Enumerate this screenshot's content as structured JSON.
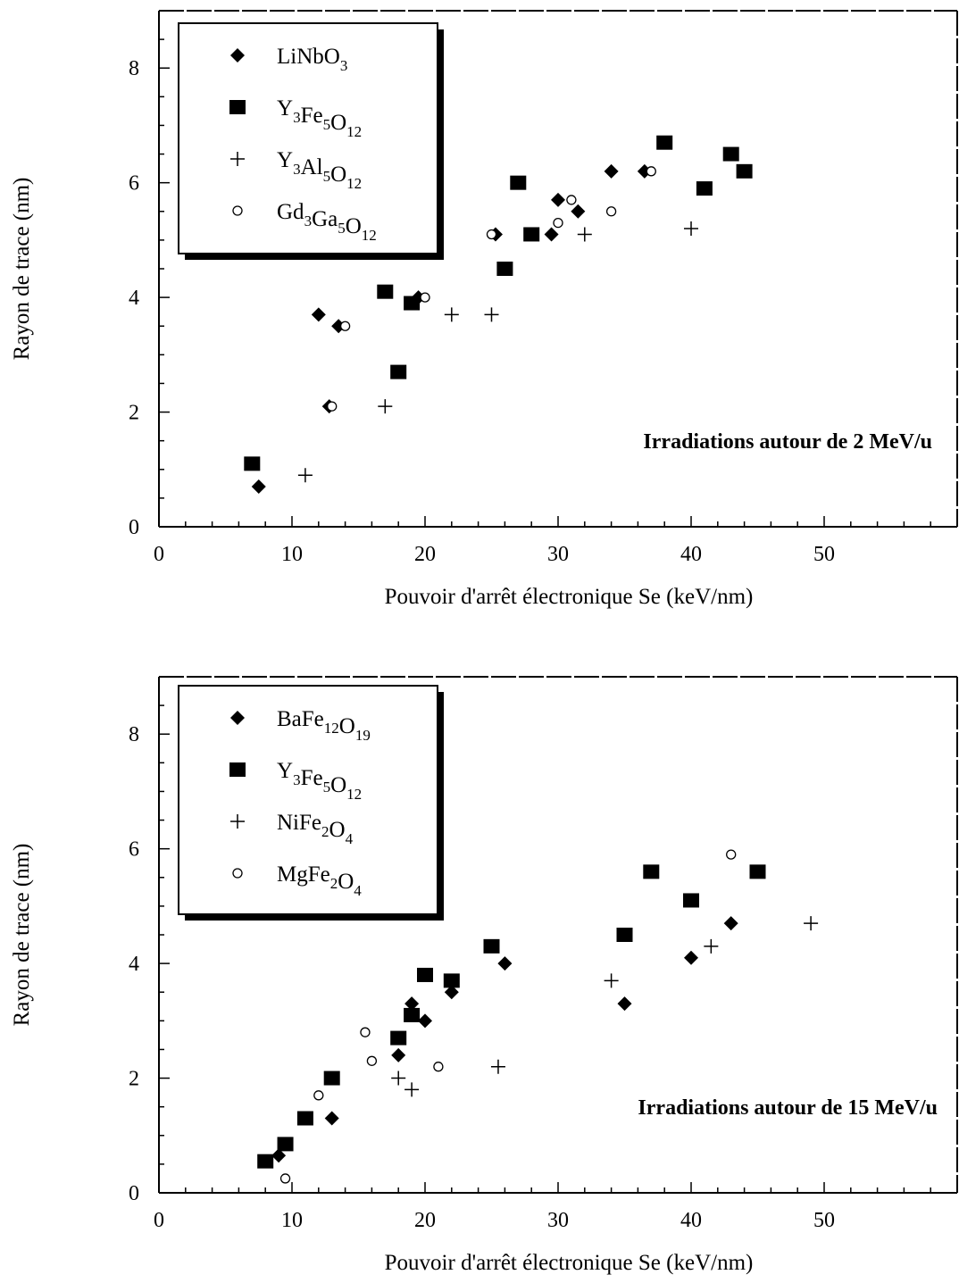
{
  "chart_data": [
    {
      "type": "scatter",
      "title": "",
      "annotation": "Irradiations autour de 2 MeV/u",
      "xlabel": "Pouvoir d'arrêt électronique Se (keV/nm)",
      "ylabel": "Rayon de trace (nm)",
      "xlim": [
        0,
        60
      ],
      "ylim": [
        0,
        9
      ],
      "xticks": [
        "0",
        "10",
        "20",
        "30",
        "40",
        "50"
      ],
      "yticks": [
        "0",
        "2",
        "4",
        "6",
        "8"
      ],
      "grid": false,
      "legend_position": "top-left",
      "series": [
        {
          "name": "LiNbO3",
          "name_parts": [
            [
              "LiNbO",
              ""
            ],
            [
              "3",
              "sub"
            ]
          ],
          "marker": "diamond",
          "points": [
            [
              7.5,
              0.7
            ],
            [
              12,
              3.7
            ],
            [
              12.8,
              2.1
            ],
            [
              13.5,
              3.5
            ],
            [
              19.5,
              4.0
            ],
            [
              25.3,
              5.1
            ],
            [
              29.5,
              5.1
            ],
            [
              30,
              5.7
            ],
            [
              31.5,
              5.5
            ],
            [
              34,
              6.2
            ],
            [
              36.5,
              6.2
            ]
          ]
        },
        {
          "name": "Y3Fe5O12",
          "name_parts": [
            [
              "Y",
              ""
            ],
            [
              "3",
              "sub"
            ],
            [
              "Fe",
              ""
            ],
            [
              "5",
              "sub"
            ],
            [
              "O",
              ""
            ],
            [
              "12",
              "sub"
            ]
          ],
          "marker": "square",
          "points": [
            [
              7,
              1.1
            ],
            [
              17,
              4.1
            ],
            [
              18,
              2.7
            ],
            [
              19,
              3.9
            ],
            [
              26,
              4.5
            ],
            [
              27,
              6.0
            ],
            [
              28,
              5.1
            ],
            [
              38,
              6.7
            ],
            [
              41,
              5.9
            ],
            [
              43,
              6.5
            ],
            [
              44,
              6.2
            ]
          ]
        },
        {
          "name": "Y3Al5O12",
          "name_parts": [
            [
              "Y",
              ""
            ],
            [
              "3",
              "sub"
            ],
            [
              "Al",
              ""
            ],
            [
              "5",
              "sub"
            ],
            [
              "O",
              ""
            ],
            [
              "12",
              "sub"
            ]
          ],
          "marker": "plus",
          "points": [
            [
              11,
              0.9
            ],
            [
              17,
              2.1
            ],
            [
              22,
              3.7
            ],
            [
              25,
              3.7
            ],
            [
              32,
              5.1
            ],
            [
              40,
              5.2
            ]
          ]
        },
        {
          "name": "Gd3Ga5O12",
          "name_parts": [
            [
              "Gd",
              ""
            ],
            [
              "3",
              "sub"
            ],
            [
              "Ga",
              ""
            ],
            [
              "5",
              "sub"
            ],
            [
              "O",
              ""
            ],
            [
              "12",
              "sub"
            ]
          ],
          "marker": "circle",
          "points": [
            [
              13,
              2.1
            ],
            [
              14,
              3.5
            ],
            [
              20,
              4.0
            ],
            [
              25,
              5.1
            ],
            [
              30,
              5.3
            ],
            [
              31,
              5.7
            ],
            [
              34,
              5.5
            ],
            [
              37,
              6.2
            ]
          ]
        }
      ]
    },
    {
      "type": "scatter",
      "title": "",
      "annotation": "Irradiations autour de 15 MeV/u",
      "xlabel": "Pouvoir d'arrêt électronique Se (keV/nm)",
      "ylabel": "Rayon de trace (nm)",
      "xlim": [
        0,
        60
      ],
      "ylim": [
        0,
        9
      ],
      "xticks": [
        "0",
        "10",
        "20",
        "30",
        "40",
        "50"
      ],
      "yticks": [
        "0",
        "2",
        "4",
        "6",
        "8"
      ],
      "grid": false,
      "legend_position": "top-left",
      "series": [
        {
          "name": "BaFe12O19",
          "name_parts": [
            [
              "BaFe",
              ""
            ],
            [
              "12",
              "sub"
            ],
            [
              "O",
              ""
            ],
            [
              "19",
              "sub"
            ]
          ],
          "marker": "diamond",
          "points": [
            [
              9,
              0.65
            ],
            [
              13,
              1.3
            ],
            [
              18,
              2.4
            ],
            [
              19,
              3.3
            ],
            [
              20,
              3.0
            ],
            [
              22,
              3.5
            ],
            [
              26,
              4.0
            ],
            [
              35,
              3.3
            ],
            [
              40,
              4.1
            ],
            [
              43,
              4.7
            ]
          ]
        },
        {
          "name": "Y3Fe5O12",
          "name_parts": [
            [
              "Y",
              ""
            ],
            [
              "3",
              "sub"
            ],
            [
              "Fe",
              ""
            ],
            [
              "5",
              "sub"
            ],
            [
              "O",
              ""
            ],
            [
              "12",
              "sub"
            ]
          ],
          "marker": "square",
          "points": [
            [
              8,
              0.55
            ],
            [
              9.5,
              0.85
            ],
            [
              11,
              1.3
            ],
            [
              13,
              2.0
            ],
            [
              18,
              2.7
            ],
            [
              19,
              3.1
            ],
            [
              20,
              3.8
            ],
            [
              22,
              3.7
            ],
            [
              25,
              4.3
            ],
            [
              35,
              4.5
            ],
            [
              37,
              5.6
            ],
            [
              40,
              5.1
            ],
            [
              45,
              5.6
            ]
          ]
        },
        {
          "name": "NiFe2O4",
          "name_parts": [
            [
              "NiFe",
              ""
            ],
            [
              "2",
              "sub"
            ],
            [
              "O",
              ""
            ],
            [
              "4",
              "sub"
            ]
          ],
          "marker": "plus",
          "points": [
            [
              18,
              2.0
            ],
            [
              19,
              1.8
            ],
            [
              25.5,
              2.2
            ],
            [
              34,
              3.7
            ],
            [
              41.5,
              4.3
            ],
            [
              49,
              4.7
            ]
          ]
        },
        {
          "name": "MgFe2O4",
          "name_parts": [
            [
              "MgFe",
              ""
            ],
            [
              "2",
              "sub"
            ],
            [
              "O",
              ""
            ],
            [
              "4",
              "sub"
            ]
          ],
          "marker": "circle",
          "points": [
            [
              9.5,
              0.25
            ],
            [
              12,
              1.7
            ],
            [
              15.5,
              2.8
            ],
            [
              16,
              2.3
            ],
            [
              21,
              2.2
            ],
            [
              43,
              5.9
            ]
          ]
        }
      ]
    }
  ]
}
